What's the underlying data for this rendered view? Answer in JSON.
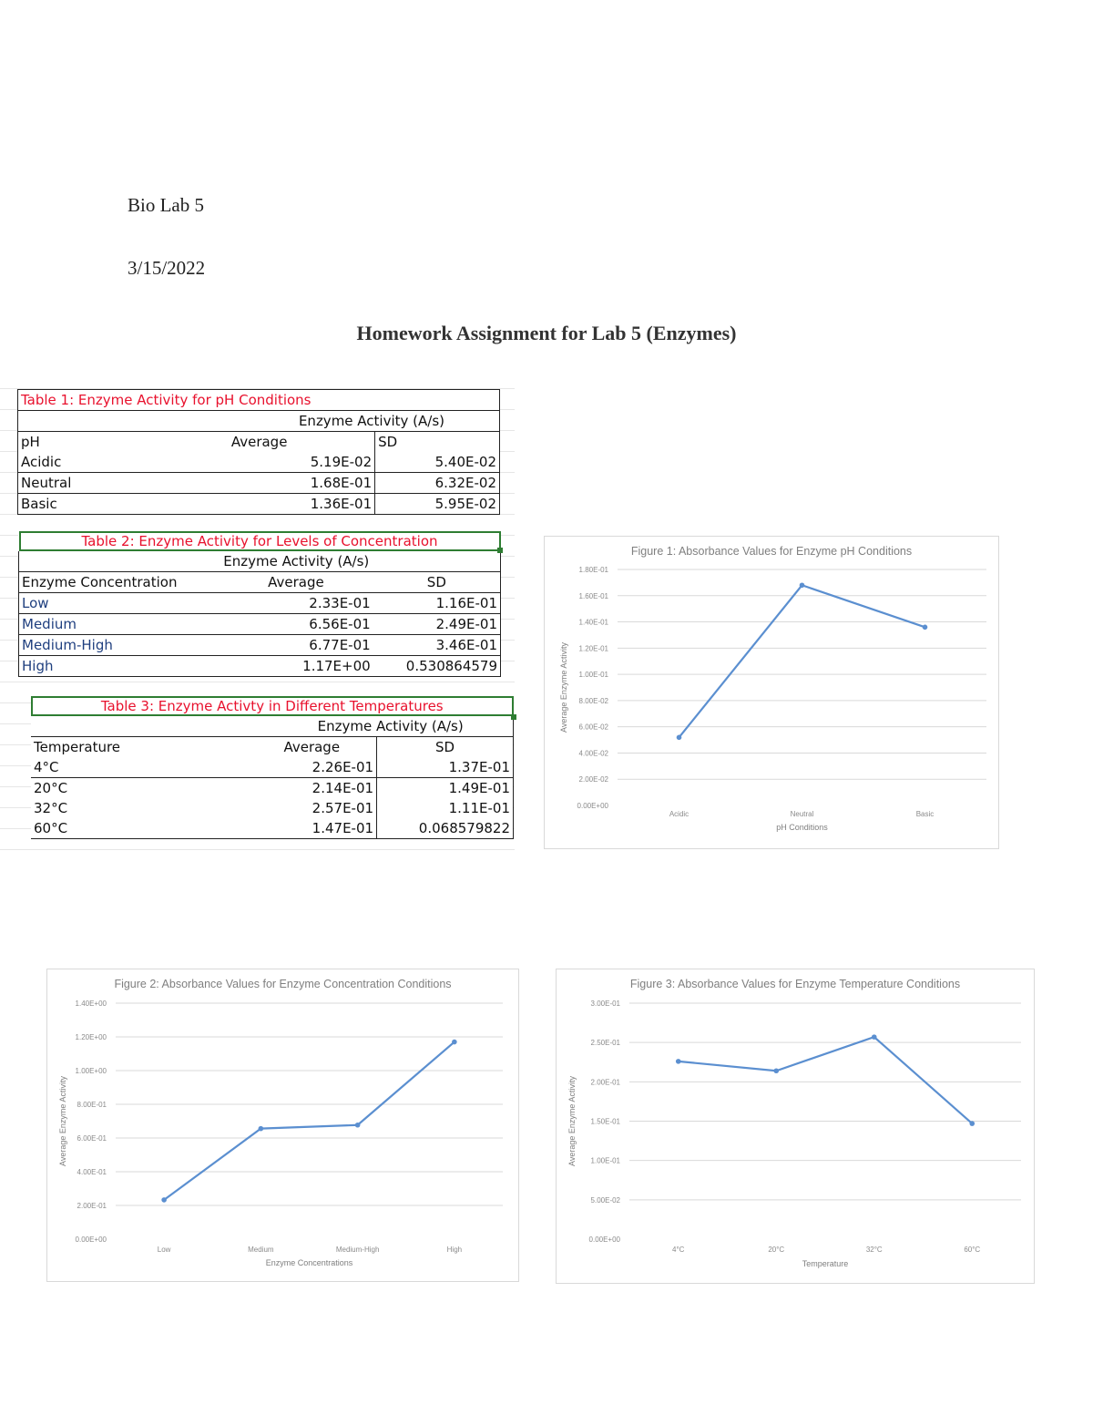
{
  "header": {
    "course": "Bio Lab 5",
    "date": "3/15/2022",
    "title": "Homework Assignment for Lab 5 (Enzymes)"
  },
  "tables": [
    {
      "title": "Table 1: Enzyme Activity for pH Conditions",
      "group_header": "Enzyme Activity (A/s)",
      "columns": [
        "pH",
        "Average",
        "SD"
      ],
      "rows": [
        [
          "Acidic",
          "5.19E-02",
          "5.40E-02"
        ],
        [
          "Neutral",
          "1.68E-01",
          "6.32E-02"
        ],
        [
          "Basic",
          "1.36E-01",
          "5.95E-02"
        ]
      ]
    },
    {
      "title": "Table 2: Enzyme Activity for Levels of Concentration",
      "group_header": "Enzyme Activity (A/s)",
      "columns": [
        "Enzyme Concentration",
        "Average",
        "SD"
      ],
      "rows": [
        [
          "Low",
          "2.33E-01",
          "1.16E-01"
        ],
        [
          "Medium",
          "6.56E-01",
          "2.49E-01"
        ],
        [
          "Medium-High",
          "6.77E-01",
          "3.46E-01"
        ],
        [
          "High",
          "1.17E+00",
          "0.530864579"
        ]
      ]
    },
    {
      "title": "Table 3: Enzyme Activty in Different Temperatures",
      "group_header": "Enzyme Activity (A/s)",
      "columns": [
        "Temperature",
        "Average",
        "SD"
      ],
      "rows": [
        [
          "4°C",
          "2.26E-01",
          "1.37E-01"
        ],
        [
          "20°C",
          "2.14E-01",
          "1.49E-01"
        ],
        [
          "32°C",
          "2.57E-01",
          "1.11E-01"
        ],
        [
          "60°C",
          "1.47E-01",
          "0.068579822"
        ]
      ]
    }
  ],
  "colors": {
    "series_line": "#5b8fd0",
    "table_title": "#e8112d",
    "selection_green": "#2e7d32",
    "gridline": "#d9d9d9"
  },
  "chart_data": [
    {
      "type": "line",
      "title": "Figure 1: Absorbance Values for Enzyme pH Conditions",
      "xlabel": "pH Conditions",
      "ylabel": "Average Enzyme Activity",
      "categories": [
        "Acidic",
        "Neutral",
        "Basic"
      ],
      "values": [
        0.0519,
        0.168,
        0.136
      ],
      "ylim": [
        0,
        0.18
      ],
      "yticks": [
        "0.00E+00",
        "2.00E-02",
        "4.00E-02",
        "6.00E-02",
        "8.00E-02",
        "1.00E-01",
        "1.20E-01",
        "1.40E-01",
        "1.60E-01",
        "1.80E-01"
      ],
      "grid": true,
      "legend": "none"
    },
    {
      "type": "line",
      "title": "Figure 2: Absorbance Values for Enzyme Concentration Conditions",
      "xlabel": "Enzyme Concentrations",
      "ylabel": "Average Enzyme Activity",
      "categories": [
        "Low",
        "Medium",
        "Medium-High",
        "High"
      ],
      "values": [
        0.233,
        0.656,
        0.677,
        1.17
      ],
      "ylim": [
        0,
        1.4
      ],
      "yticks": [
        "0.00E+00",
        "2.00E-01",
        "4.00E-01",
        "6.00E-01",
        "8.00E-01",
        "1.00E+00",
        "1.20E+00",
        "1.40E+00"
      ],
      "grid": true,
      "legend": "none"
    },
    {
      "type": "line",
      "title": "Figure 3: Absorbance Values for Enzyme Temperature Conditions",
      "xlabel": "Temperature",
      "ylabel": "Average Enzyme Activity",
      "categories": [
        "4°C",
        "20°C",
        "32°C",
        "60°C"
      ],
      "values": [
        0.226,
        0.214,
        0.257,
        0.147
      ],
      "ylim": [
        0,
        0.3
      ],
      "yticks": [
        "0.00E+00",
        "5.00E-02",
        "1.00E-01",
        "1.50E-01",
        "2.00E-01",
        "2.50E-01",
        "3.00E-01"
      ],
      "grid": true,
      "legend": "none"
    }
  ]
}
